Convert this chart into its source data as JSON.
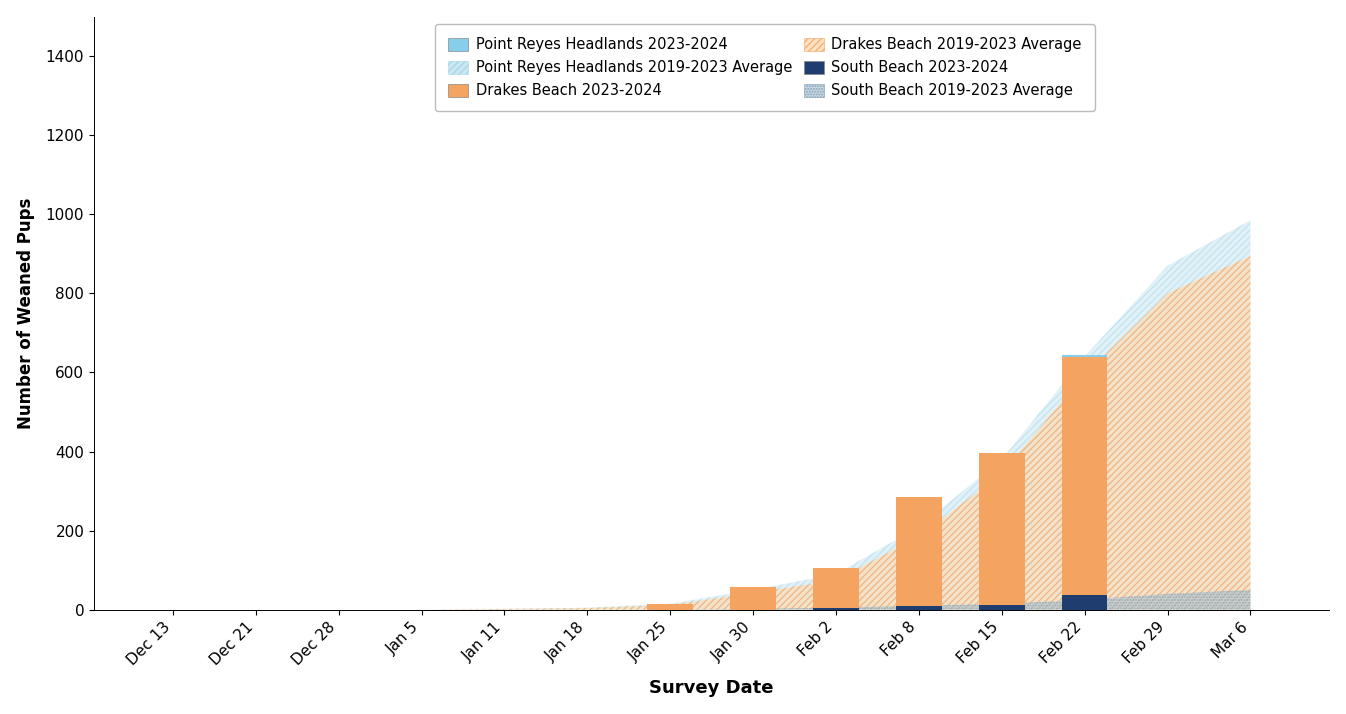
{
  "dates": [
    "Dec 13",
    "Dec 21",
    "Dec 28",
    "Jan 5",
    "Jan 11",
    "Jan 18",
    "Jan 25",
    "Jan 30",
    "Feb 2",
    "Feb 8",
    "Feb 15",
    "Feb 22",
    "Feb 29",
    "Mar 6"
  ],
  "bar_drakes_2024": [
    0,
    0,
    0,
    0,
    0,
    0,
    15,
    58,
    100,
    275,
    385,
    600,
    0,
    0
  ],
  "bar_south_2024": [
    0,
    0,
    0,
    0,
    0,
    0,
    0,
    0,
    5,
    10,
    12,
    38,
    0,
    0
  ],
  "bar_prh_2024": [
    0,
    0,
    0,
    0,
    0,
    0,
    0,
    0,
    0,
    0,
    0,
    5,
    0,
    0
  ],
  "avg_total": [
    0,
    0,
    0,
    0,
    2,
    5,
    15,
    50,
    90,
    210,
    380,
    640,
    870,
    985
  ],
  "avg_drakes": [
    0,
    0,
    0,
    0,
    2,
    4,
    12,
    42,
    75,
    185,
    345,
    595,
    800,
    895
  ],
  "avg_south": [
    0,
    0,
    0,
    0,
    0,
    0,
    0,
    2,
    5,
    10,
    15,
    25,
    40,
    50
  ],
  "ylim": [
    0,
    1500
  ],
  "yticks": [
    0,
    200,
    400,
    600,
    800,
    1000,
    1200,
    1400
  ],
  "ylabel": "Number of Weaned Pups",
  "xlabel": "Survey Date",
  "color_prh_bar": "#87CEEB",
  "color_drakes_bar": "#F4A460",
  "color_south_bar": "#1F3D6E",
  "color_total_avg_fill": "#ADD8E6",
  "color_total_avg_edge": "#87CEEB",
  "color_drakes_avg_fill": "#FDDCB5",
  "color_drakes_avg_edge": "#F4A460",
  "color_south_avg_fill": "#B0C8D8",
  "color_south_avg_edge": "#7090A8"
}
